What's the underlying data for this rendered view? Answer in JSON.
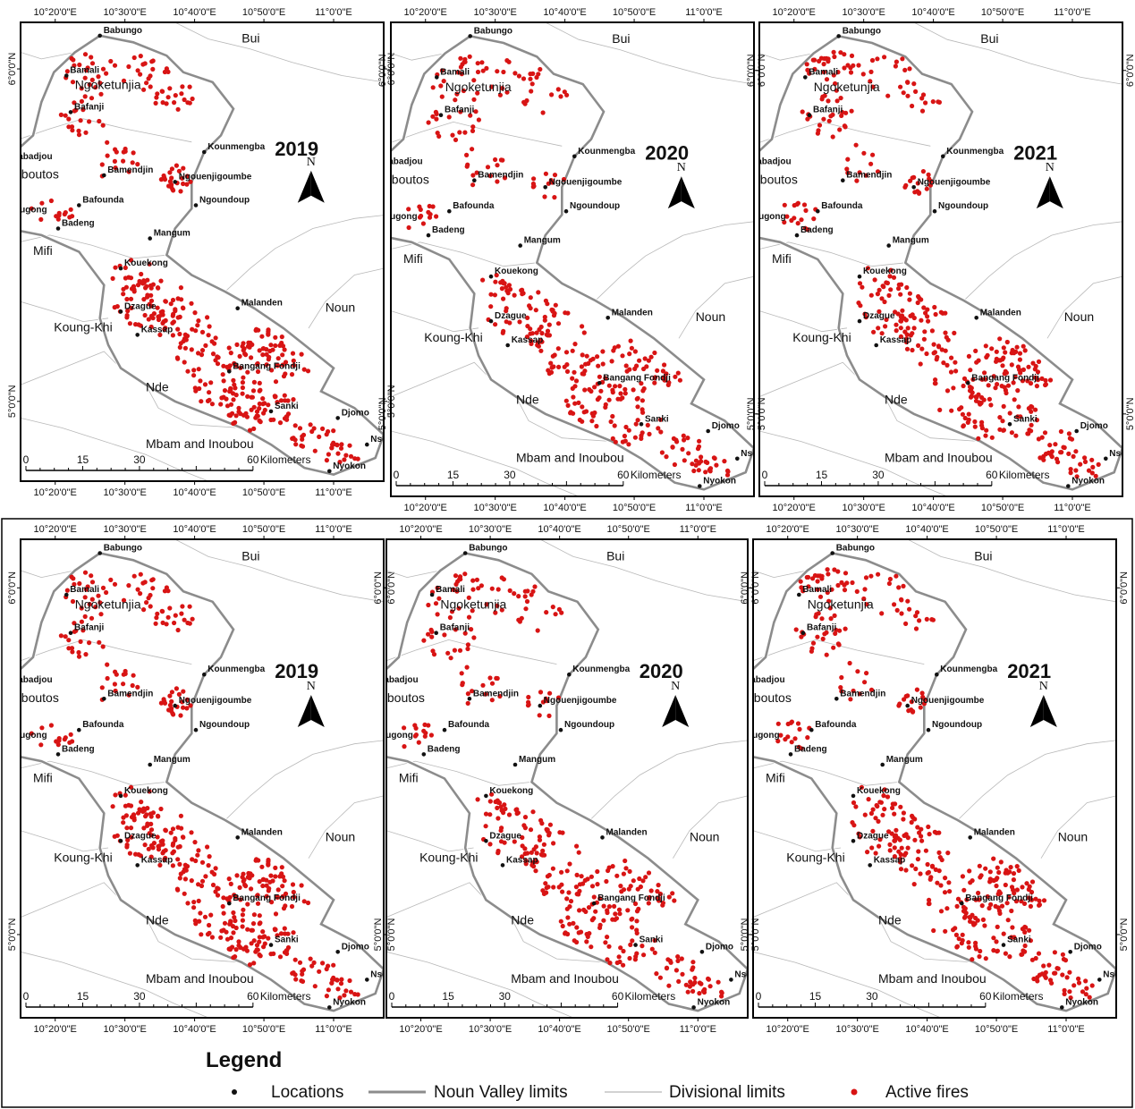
{
  "panels": [
    {
      "year": "2019",
      "seed": 11,
      "density": 1.0,
      "variant": 0
    },
    {
      "year": "2020",
      "seed": 23,
      "density": 0.8,
      "variant": 1
    },
    {
      "year": "2021",
      "seed": 37,
      "density": 0.85,
      "variant": 2
    },
    {
      "year": "2019",
      "seed": 11,
      "density": 1.0,
      "variant": 0
    },
    {
      "year": "2020",
      "seed": 23,
      "density": 0.8,
      "variant": 1
    },
    {
      "year": "2021",
      "seed": 37,
      "density": 0.85,
      "variant": 2
    }
  ],
  "graticule": {
    "longitudes": [
      "10°20'0\"E",
      "10°30'0\"E",
      "10°40'0\"E",
      "10°50'0\"E",
      "11°0'0\"E"
    ],
    "latitudes": [
      "6°0'0\"N",
      "5°0'0\"N"
    ]
  },
  "scale_bar": {
    "ticks": [
      "0",
      "15",
      "30",
      "60"
    ],
    "unit": "Kilometers"
  },
  "north_label": "N",
  "places": [
    {
      "name": "Babungo",
      "lon": 10.44,
      "lat": 6.1
    },
    {
      "name": "Bamali",
      "lon": 10.36,
      "lat": 5.98
    },
    {
      "name": "Bafanji",
      "lon": 10.37,
      "lat": 5.87
    },
    {
      "name": "Babadjou",
      "lon": 10.22,
      "lat": 5.72
    },
    {
      "name": "Bamendjin",
      "lon": 10.45,
      "lat": 5.68
    },
    {
      "name": "Kounmengba",
      "lon": 10.69,
      "lat": 5.75
    },
    {
      "name": "Ngouenjigoumbe",
      "lon": 10.62,
      "lat": 5.66
    },
    {
      "name": "Bafounda",
      "lon": 10.39,
      "lat": 5.59
    },
    {
      "name": "Ngoundoup",
      "lon": 10.67,
      "lat": 5.59
    },
    {
      "name": "Bamougong",
      "lon": 10.18,
      "lat": 5.56
    },
    {
      "name": "Badeng",
      "lon": 10.34,
      "lat": 5.52
    },
    {
      "name": "Mangum",
      "lon": 10.56,
      "lat": 5.49
    },
    {
      "name": "Kouekong",
      "lon": 10.49,
      "lat": 5.4
    },
    {
      "name": "Dzague",
      "lon": 10.49,
      "lat": 5.27
    },
    {
      "name": "Malanden",
      "lon": 10.77,
      "lat": 5.28
    },
    {
      "name": "Kassap",
      "lon": 10.53,
      "lat": 5.2
    },
    {
      "name": "Bangang Fondji",
      "lon": 10.75,
      "lat": 5.09
    },
    {
      "name": "Sanki",
      "lon": 10.85,
      "lat": 4.97
    },
    {
      "name": "Djomo",
      "lon": 11.01,
      "lat": 4.95
    },
    {
      "name": "Nsomo",
      "lon": 11.08,
      "lat": 4.87
    },
    {
      "name": "Nyokon",
      "lon": 10.99,
      "lat": 4.79
    }
  ],
  "divisions": [
    {
      "name": "Bui",
      "lon": 10.78,
      "lat": 6.08
    },
    {
      "name": "Ngoketunjia",
      "lon": 10.38,
      "lat": 5.94
    },
    {
      "name": "Bamboutos",
      "lon": 10.19,
      "lat": 5.67
    },
    {
      "name": "Mifi",
      "lon": 10.28,
      "lat": 5.44
    },
    {
      "name": "Noun",
      "lon": 10.98,
      "lat": 5.27
    },
    {
      "name": "Koung-Khi",
      "lon": 10.33,
      "lat": 5.21
    },
    {
      "name": "Nde",
      "lon": 10.55,
      "lat": 5.03
    },
    {
      "name": "Mbam and Inoubou",
      "lon": 10.55,
      "lat": 4.86
    }
  ],
  "legend": {
    "title": "Legend",
    "items": [
      {
        "label": "Locations",
        "symbol": "location-dot"
      },
      {
        "label": "Noun Valley limits",
        "symbol": "valley-line"
      },
      {
        "label": "Divisional limits",
        "symbol": "division-line"
      },
      {
        "label": "Active fires",
        "symbol": "fire-dot"
      }
    ]
  },
  "colors": {
    "fire": "#d81414",
    "valley": "#8c8c8c",
    "division": "#b8b8b8",
    "location": "#111111"
  }
}
